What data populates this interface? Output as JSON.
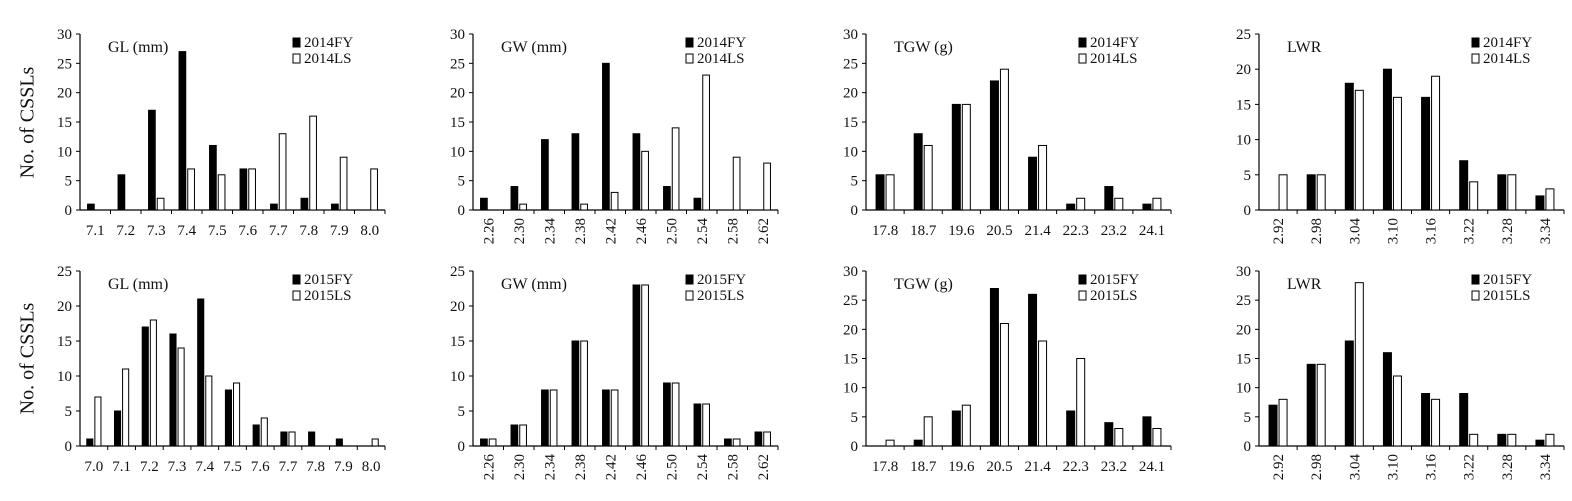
{
  "figure": {
    "ylabel": "No. of CSSLs",
    "colors": {
      "dark": "#000000",
      "light": "#ffffff",
      "axis": "#000000"
    }
  },
  "chart_data": [
    {
      "type": "bar",
      "row": 0,
      "col": 0,
      "title": "GL (mm)",
      "categories": [
        "7.1",
        "7.2",
        "7.3",
        "7.4",
        "7.5",
        "7.6",
        "7.7",
        "7.8",
        "7.9",
        "8.0"
      ],
      "ylim": [
        0,
        30
      ],
      "yticks": [
        0,
        5,
        10,
        15,
        20,
        25,
        30
      ],
      "series": [
        {
          "name": "2014FY",
          "values": [
            1,
            6,
            17,
            27,
            11,
            7,
            1,
            2,
            1,
            0
          ]
        },
        {
          "name": "2014LS",
          "values": [
            0,
            0,
            2,
            7,
            6,
            7,
            13,
            16,
            9,
            7
          ]
        }
      ],
      "legend_position": "top-right",
      "rotate_labels": false
    },
    {
      "type": "bar",
      "row": 0,
      "col": 1,
      "title": "GW (mm)",
      "categories": [
        "2.26",
        "2.30",
        "2.34",
        "2.38",
        "2.42",
        "2.46",
        "2.50",
        "2.54",
        "2.58",
        "2.62"
      ],
      "ylim": [
        0,
        30
      ],
      "yticks": [
        0,
        5,
        10,
        15,
        20,
        25,
        30
      ],
      "series": [
        {
          "name": "2014FY",
          "values": [
            2,
            4,
            12,
            13,
            25,
            13,
            4,
            2,
            0,
            0
          ]
        },
        {
          "name": "2014LS",
          "values": [
            0,
            1,
            0,
            1,
            3,
            10,
            14,
            23,
            9,
            8
          ]
        }
      ],
      "legend_position": "top-right",
      "rotate_labels": true
    },
    {
      "type": "bar",
      "row": 0,
      "col": 2,
      "title": "TGW (g)",
      "categories": [
        "17.8",
        "18.7",
        "19.6",
        "20.5",
        "21.4",
        "22.3",
        "23.2",
        "24.1"
      ],
      "ylim": [
        0,
        30
      ],
      "yticks": [
        0,
        5,
        10,
        15,
        20,
        25,
        30
      ],
      "series": [
        {
          "name": "2014FY",
          "values": [
            6,
            13,
            18,
            22,
            9,
            1,
            4,
            1
          ]
        },
        {
          "name": "2014LS",
          "values": [
            6,
            11,
            18,
            24,
            11,
            2,
            2,
            2
          ]
        }
      ],
      "legend_position": "top-right",
      "rotate_labels": false
    },
    {
      "type": "bar",
      "row": 0,
      "col": 3,
      "title": "LWR",
      "categories": [
        "2.92",
        "2.98",
        "3.04",
        "3.10",
        "3.16",
        "3.22",
        "3.28",
        "3.34"
      ],
      "ylim": [
        0,
        25
      ],
      "yticks": [
        0,
        5,
        10,
        15,
        20,
        25
      ],
      "series": [
        {
          "name": "2014FY",
          "values": [
            0,
            5,
            18,
            20,
            16,
            7,
            5,
            2
          ]
        },
        {
          "name": "2014LS",
          "values": [
            5,
            5,
            17,
            16,
            19,
            4,
            5,
            3
          ]
        }
      ],
      "legend_position": "top-right",
      "rotate_labels": true
    },
    {
      "type": "bar",
      "row": 1,
      "col": 0,
      "title": "GL (mm)",
      "categories": [
        "7.0",
        "7.1",
        "7.2",
        "7.3",
        "7.4",
        "7.5",
        "7.6",
        "7.7",
        "7.8",
        "7.9",
        "8.0"
      ],
      "ylim": [
        0,
        25
      ],
      "yticks": [
        0,
        5,
        10,
        15,
        20,
        25
      ],
      "series": [
        {
          "name": "2015FY",
          "values": [
            1,
            5,
            17,
            16,
            21,
            8,
            3,
            2,
            2,
            1,
            0
          ]
        },
        {
          "name": "2015LS",
          "values": [
            7,
            11,
            18,
            14,
            10,
            9,
            4,
            2,
            0,
            0,
            1
          ]
        }
      ],
      "legend_position": "top-right",
      "rotate_labels": false
    },
    {
      "type": "bar",
      "row": 1,
      "col": 1,
      "title": "GW (mm)",
      "categories": [
        "2.26",
        "2.30",
        "2.34",
        "2.38",
        "2.42",
        "2.46",
        "2.50",
        "2.54",
        "2.58",
        "2.62"
      ],
      "ylim": [
        0,
        25
      ],
      "yticks": [
        0,
        5,
        10,
        15,
        20,
        25
      ],
      "series": [
        {
          "name": "2015FY",
          "values": [
            1,
            3,
            8,
            15,
            8,
            23,
            9,
            6,
            1,
            2
          ]
        },
        {
          "name": "2015LS",
          "values": [
            1,
            3,
            8,
            15,
            8,
            23,
            9,
            6,
            1,
            2
          ]
        }
      ],
      "legend_position": "top-right",
      "rotate_labels": true
    },
    {
      "type": "bar",
      "row": 1,
      "col": 2,
      "title": "TGW (g)",
      "categories": [
        "17.8",
        "18.7",
        "19.6",
        "20.5",
        "21.4",
        "22.3",
        "23.2",
        "24.1"
      ],
      "ylim": [
        0,
        30
      ],
      "yticks": [
        0,
        5,
        10,
        15,
        20,
        25,
        30
      ],
      "series": [
        {
          "name": "2015FY",
          "values": [
            0,
            1,
            6,
            27,
            26,
            6,
            4,
            5
          ]
        },
        {
          "name": "2015LS",
          "values": [
            1,
            5,
            7,
            21,
            18,
            15,
            3,
            3
          ]
        }
      ],
      "legend_position": "top-right",
      "rotate_labels": false
    },
    {
      "type": "bar",
      "row": 1,
      "col": 3,
      "title": "LWR",
      "categories": [
        "2.92",
        "2.98",
        "3.04",
        "3.10",
        "3.16",
        "3.22",
        "3.28",
        "3.34"
      ],
      "ylim": [
        0,
        30
      ],
      "yticks": [
        0,
        5,
        10,
        15,
        20,
        25,
        30
      ],
      "series": [
        {
          "name": "2015FY",
          "values": [
            7,
            14,
            18,
            16,
            9,
            9,
            2,
            1
          ]
        },
        {
          "name": "2015LS",
          "values": [
            8,
            14,
            28,
            12,
            8,
            2,
            2,
            2
          ]
        }
      ],
      "legend_position": "top-right",
      "rotate_labels": true
    }
  ]
}
